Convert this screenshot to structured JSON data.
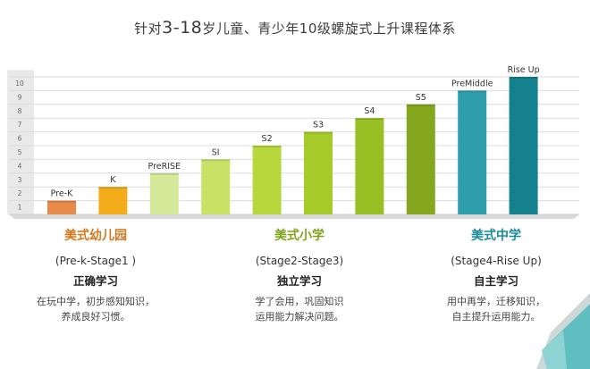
{
  "title": {
    "part1": "针对",
    "part2": "3-18",
    "part3": "岁",
    "part4": "儿童、青少年10级螺旋式上升课程体系"
  },
  "colors": {
    "kindergarten": "#d4761a",
    "primary": "#7fa31a",
    "middle": "#1a8a9a",
    "axis_band": "#e9e9e9",
    "corner": "#5fbfc0"
  },
  "chart_data": {
    "type": "bar",
    "title": "",
    "xlabel": "",
    "ylabel": "",
    "ylim": [
      0,
      10
    ],
    "y_ticks": [
      "1",
      "2",
      "3",
      "4",
      "5",
      "6",
      "7",
      "8",
      "9",
      "10"
    ],
    "grid": true,
    "categories": [
      "Pre-K",
      "K",
      "PreRISE",
      "SI",
      "S2",
      "S3",
      "S4",
      "S5",
      "PreMiddle",
      "Rise Up"
    ],
    "values": [
      1,
      2,
      3,
      4,
      5,
      6,
      7,
      8,
      9,
      10
    ],
    "bar_colors": [
      "#ea8a48",
      "#f3ad1a",
      "#d5e99a",
      "#c9e266",
      "#b7d83c",
      "#a7cc2a",
      "#98c024",
      "#84a71e",
      "#2f9fad",
      "#15808e"
    ]
  },
  "stages": [
    {
      "name": "美式幼儿园",
      "range": "(Pre-k-Stage1 )",
      "method": "正确学习",
      "desc": [
        "在玩中学，初步感知知识，",
        "养成良好习惯。"
      ]
    },
    {
      "name": "美式小学",
      "range": "(Stage2-Stage3)",
      "method": "独立学习",
      "desc": [
        "学了会用，巩固知识",
        "运用能力解决问题。"
      ]
    },
    {
      "name": "美式中学",
      "range": "(Stage4-Rise Up)",
      "method": "自主学习",
      "desc": [
        "用中再学，迁移知识，",
        "自主提升运用能力。"
      ]
    }
  ]
}
